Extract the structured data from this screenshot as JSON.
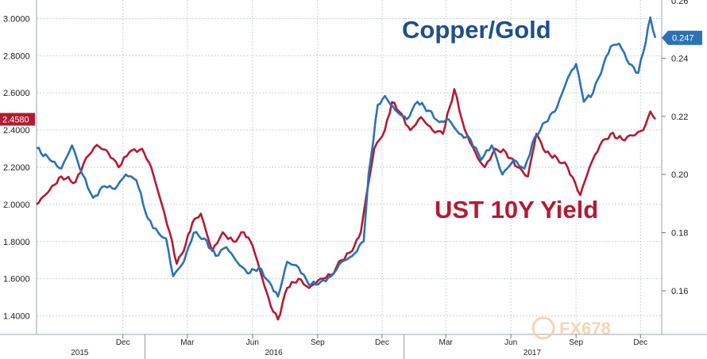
{
  "chart_data": {
    "type": "line",
    "x_range": [
      "2015-08-01",
      "2017-12-31"
    ],
    "left_axis": {
      "ylim": [
        1.3,
        3.1
      ],
      "ticks": [
        1.4,
        1.6,
        1.8,
        2.0,
        2.2,
        2.4,
        2.6,
        2.8,
        3.0
      ],
      "tick_labels": [
        "1.4000",
        "1.6000",
        "1.8000",
        "2.0000",
        "2.2000",
        "2.4000",
        "2.6000",
        "2.8000",
        "3.0000"
      ]
    },
    "right_axis": {
      "ylim": [
        0.145,
        0.26
      ],
      "ticks": [
        0.16,
        0.18,
        0.2,
        0.22,
        0.24
      ],
      "tick_labels": [
        "0.16",
        "0.18",
        "0.20",
        "0.22",
        "0.24"
      ],
      "top_partial_label": "0.26"
    },
    "x_tick_labels": [
      {
        "label": "Dec",
        "date": "2015-12-01"
      },
      {
        "label": "Mar",
        "date": "2016-03-01"
      },
      {
        "label": "Jun",
        "date": "2016-06-01"
      },
      {
        "label": "Sep",
        "date": "2016-09-01"
      },
      {
        "label": "Dec",
        "date": "2016-12-01"
      },
      {
        "label": "Mar",
        "date": "2017-03-01"
      },
      {
        "label": "Jun",
        "date": "2017-06-01"
      },
      {
        "label": "Sep",
        "date": "2017-09-01"
      },
      {
        "label": "Dec",
        "date": "2017-12-01"
      }
    ],
    "year_labels": [
      {
        "label": "2015",
        "date": "2015-10-01"
      },
      {
        "label": "2016",
        "date": "2016-07-01"
      },
      {
        "label": "2017",
        "date": "2017-07-01"
      }
    ],
    "grid": true,
    "series": [
      {
        "name": "UST 10Y Yield",
        "axis": "left",
        "color": "#b31b34",
        "last_value_label": "2.4580",
        "points": [
          [
            "2015-08-01",
            2.0
          ],
          [
            "2015-08-20",
            2.08
          ],
          [
            "2015-09-05",
            2.15
          ],
          [
            "2015-09-25",
            2.12
          ],
          [
            "2015-10-10",
            2.25
          ],
          [
            "2015-10-25",
            2.32
          ],
          [
            "2015-11-10",
            2.28
          ],
          [
            "2015-11-25",
            2.2
          ],
          [
            "2015-12-10",
            2.28
          ],
          [
            "2015-12-28",
            2.3
          ],
          [
            "2016-01-10",
            2.2
          ],
          [
            "2016-01-25",
            2.0
          ],
          [
            "2016-02-05",
            1.85
          ],
          [
            "2016-02-15",
            1.68
          ],
          [
            "2016-02-25",
            1.75
          ],
          [
            "2016-03-08",
            1.9
          ],
          [
            "2016-03-20",
            1.95
          ],
          [
            "2016-04-05",
            1.75
          ],
          [
            "2016-04-20",
            1.85
          ],
          [
            "2016-05-05",
            1.8
          ],
          [
            "2016-05-20",
            1.85
          ],
          [
            "2016-06-01",
            1.78
          ],
          [
            "2016-06-15",
            1.6
          ],
          [
            "2016-06-27",
            1.45
          ],
          [
            "2016-07-07",
            1.38
          ],
          [
            "2016-07-20",
            1.55
          ],
          [
            "2016-08-05",
            1.6
          ],
          [
            "2016-08-20",
            1.55
          ],
          [
            "2016-09-05",
            1.6
          ],
          [
            "2016-09-20",
            1.62
          ],
          [
            "2016-10-05",
            1.7
          ],
          [
            "2016-10-20",
            1.75
          ],
          [
            "2016-11-01",
            1.85
          ],
          [
            "2016-11-09",
            2.05
          ],
          [
            "2016-11-20",
            2.3
          ],
          [
            "2016-12-05",
            2.4
          ],
          [
            "2016-12-15",
            2.55
          ],
          [
            "2016-12-25",
            2.5
          ],
          [
            "2017-01-10",
            2.4
          ],
          [
            "2017-01-25",
            2.47
          ],
          [
            "2017-02-10",
            2.4
          ],
          [
            "2017-02-25",
            2.38
          ],
          [
            "2017-03-13",
            2.62
          ],
          [
            "2017-03-28",
            2.4
          ],
          [
            "2017-04-15",
            2.25
          ],
          [
            "2017-04-25",
            2.2
          ],
          [
            "2017-05-10",
            2.3
          ],
          [
            "2017-05-25",
            2.28
          ],
          [
            "2017-06-10",
            2.2
          ],
          [
            "2017-06-25",
            2.15
          ],
          [
            "2017-07-07",
            2.38
          ],
          [
            "2017-07-20",
            2.28
          ],
          [
            "2017-08-05",
            2.25
          ],
          [
            "2017-08-20",
            2.2
          ],
          [
            "2017-09-07",
            2.05
          ],
          [
            "2017-09-20",
            2.2
          ],
          [
            "2017-10-05",
            2.32
          ],
          [
            "2017-10-20",
            2.38
          ],
          [
            "2017-11-05",
            2.35
          ],
          [
            "2017-11-20",
            2.37
          ],
          [
            "2017-12-05",
            2.4
          ],
          [
            "2017-12-15",
            2.5
          ],
          [
            "2017-12-22",
            2.458
          ]
        ]
      },
      {
        "name": "Copper/Gold",
        "axis": "right",
        "color": "#2b72b5",
        "last_value_label": "0.247",
        "points": [
          [
            "2015-08-01",
            0.209
          ],
          [
            "2015-08-20",
            0.205
          ],
          [
            "2015-09-05",
            0.202
          ],
          [
            "2015-09-20",
            0.21
          ],
          [
            "2015-10-05",
            0.2
          ],
          [
            "2015-10-20",
            0.192
          ],
          [
            "2015-11-05",
            0.196
          ],
          [
            "2015-11-20",
            0.195
          ],
          [
            "2015-12-05",
            0.2
          ],
          [
            "2015-12-20",
            0.198
          ],
          [
            "2016-01-05",
            0.185
          ],
          [
            "2016-01-20",
            0.18
          ],
          [
            "2016-01-31",
            0.178
          ],
          [
            "2016-02-10",
            0.165
          ],
          [
            "2016-02-25",
            0.17
          ],
          [
            "2016-03-10",
            0.18
          ],
          [
            "2016-03-25",
            0.178
          ],
          [
            "2016-04-10",
            0.172
          ],
          [
            "2016-04-25",
            0.175
          ],
          [
            "2016-05-10",
            0.17
          ],
          [
            "2016-05-25",
            0.166
          ],
          [
            "2016-06-10",
            0.168
          ],
          [
            "2016-06-25",
            0.163
          ],
          [
            "2016-07-07",
            0.158
          ],
          [
            "2016-07-20",
            0.17
          ],
          [
            "2016-08-05",
            0.168
          ],
          [
            "2016-08-20",
            0.162
          ],
          [
            "2016-09-05",
            0.163
          ],
          [
            "2016-09-20",
            0.165
          ],
          [
            "2016-10-05",
            0.17
          ],
          [
            "2016-10-20",
            0.172
          ],
          [
            "2016-11-05",
            0.177
          ],
          [
            "2016-11-12",
            0.2
          ],
          [
            "2016-11-25",
            0.224
          ],
          [
            "2016-12-05",
            0.227
          ],
          [
            "2016-12-20",
            0.222
          ],
          [
            "2017-01-05",
            0.219
          ],
          [
            "2017-01-20",
            0.225
          ],
          [
            "2017-02-05",
            0.222
          ],
          [
            "2017-02-20",
            0.218
          ],
          [
            "2017-03-05",
            0.219
          ],
          [
            "2017-03-20",
            0.214
          ],
          [
            "2017-04-05",
            0.212
          ],
          [
            "2017-04-20",
            0.205
          ],
          [
            "2017-05-05",
            0.21
          ],
          [
            "2017-05-20",
            0.2
          ],
          [
            "2017-06-05",
            0.205
          ],
          [
            "2017-06-20",
            0.202
          ],
          [
            "2017-07-05",
            0.213
          ],
          [
            "2017-07-20",
            0.218
          ],
          [
            "2017-08-05",
            0.223
          ],
          [
            "2017-08-20",
            0.233
          ],
          [
            "2017-09-01",
            0.238
          ],
          [
            "2017-09-12",
            0.225
          ],
          [
            "2017-09-25",
            0.228
          ],
          [
            "2017-10-10",
            0.238
          ],
          [
            "2017-10-20",
            0.244
          ],
          [
            "2017-11-01",
            0.245
          ],
          [
            "2017-11-15",
            0.238
          ],
          [
            "2017-11-28",
            0.235
          ],
          [
            "2017-12-05",
            0.242
          ],
          [
            "2017-12-15",
            0.254
          ],
          [
            "2017-12-22",
            0.247
          ]
        ]
      }
    ],
    "annotations": [
      {
        "text": "Copper/Gold",
        "color": "#1f4f8a",
        "anchor": "upper-right"
      },
      {
        "text": "UST 10Y Yield",
        "color": "#b31b34",
        "anchor": "right"
      }
    ]
  },
  "watermark": {
    "text": "FX678"
  }
}
